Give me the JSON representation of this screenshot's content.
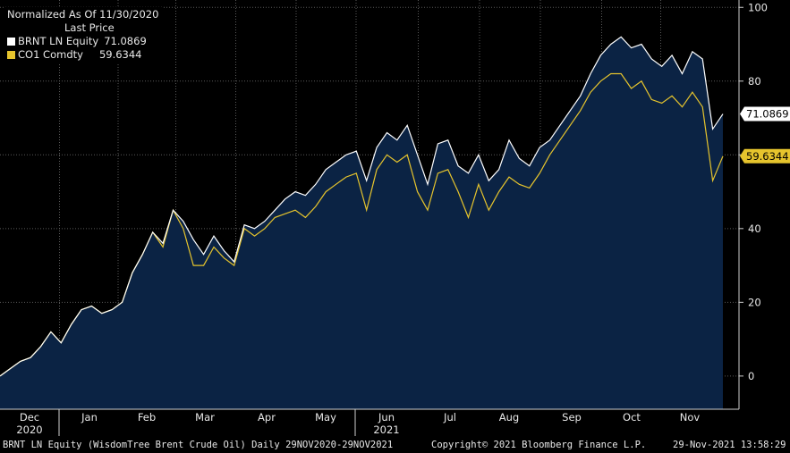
{
  "legend": {
    "header1": "Normalized As Of 11/30/2020",
    "header2": "Last Price"
  },
  "footer": {
    "left": "BRNT LN Equity (WisdomTree Brent Crude Oil)  Daily 29NOV2020-29NOV2021",
    "center": "Copyright© 2021 Bloomberg Finance L.P.",
    "right": "29-Nov-2021 13:58:29"
  },
  "colors": {
    "background": "#000000",
    "area_fill": "#0b2344",
    "brnt": "#ffffff",
    "co1": "#e6c42d"
  },
  "chart_data": {
    "type": "area",
    "x_tick_labels": [
      "Dec",
      "Jan",
      "Feb",
      "Mar",
      "Apr",
      "May",
      "Jun",
      "Jul",
      "Aug",
      "Sep",
      "Oct",
      "Nov"
    ],
    "x_year_labels": [
      {
        "month": "Dec",
        "label": "2020"
      },
      {
        "month": "Jun",
        "label": "2021"
      }
    ],
    "y_ticks": [
      0,
      20,
      40,
      60,
      80,
      100
    ],
    "ylim": [
      -9,
      102
    ],
    "y_axis_position": "right",
    "legend_position": "top-left",
    "grid": true,
    "series": [
      {
        "name": "BRNT LN Equity",
        "legend_value": "71.0869",
        "last_value": "71.0869",
        "values": [
          0,
          2,
          4,
          5,
          8,
          12,
          9,
          14,
          18,
          19,
          17,
          18,
          20,
          28,
          33,
          39,
          36,
          45,
          42,
          37,
          33,
          38,
          34,
          31,
          41,
          40,
          42,
          45,
          48,
          50,
          49,
          52,
          56,
          58,
          60,
          61,
          53,
          62,
          66,
          64,
          68,
          60,
          52,
          63,
          64,
          57,
          55,
          60,
          53,
          56,
          64,
          59,
          57,
          62,
          64,
          68,
          72,
          76,
          82,
          87,
          90,
          92,
          89,
          90,
          86,
          84,
          87,
          82,
          88,
          86,
          67,
          71.0869
        ]
      },
      {
        "name": "CO1 Comdty",
        "legend_value": "59.6344",
        "last_value": "59.6344",
        "values": [
          0,
          2,
          4,
          5,
          8,
          12,
          9,
          14,
          18,
          19,
          17,
          18,
          20,
          28,
          33,
          39,
          35,
          45,
          40,
          30,
          30,
          35,
          32,
          30,
          40,
          38,
          40,
          43,
          44,
          45,
          43,
          46,
          50,
          52,
          54,
          55,
          45,
          56,
          60,
          58,
          60,
          50,
          45,
          55,
          56,
          50,
          43,
          52,
          45,
          50,
          54,
          52,
          51,
          55,
          60,
          64,
          68,
          72,
          77,
          80,
          82,
          82,
          78,
          80,
          75,
          74,
          76,
          73,
          77,
          73,
          53,
          59.6344
        ]
      }
    ]
  }
}
